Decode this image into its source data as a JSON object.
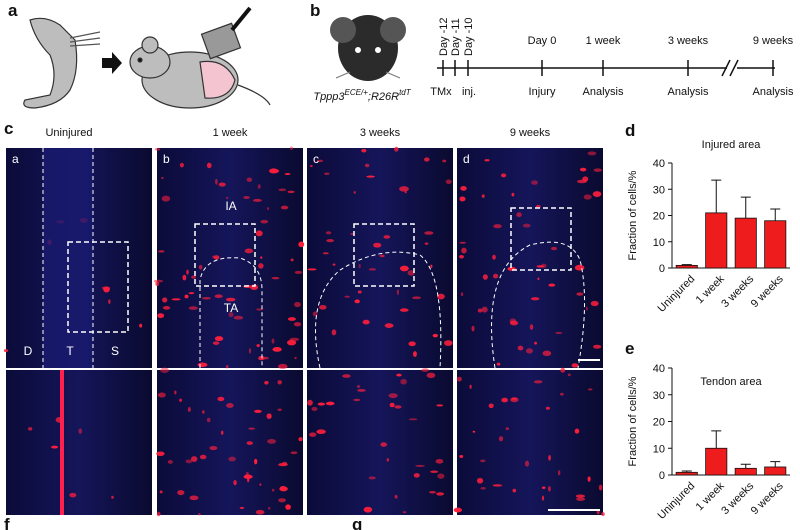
{
  "panel_labels": [
    "a",
    "b",
    "c",
    "d",
    "e",
    "f",
    "g"
  ],
  "genotype": {
    "gene": "Tppp3",
    "allele1": "ECE/+",
    "sep": ";",
    "reporter": "R26R",
    "allele2": "tdT"
  },
  "timeline": {
    "top_labels": [
      "Day -12",
      "Day -11",
      "Day -10",
      "Day 0",
      "1 week",
      "3 weeks",
      "9 weeks"
    ],
    "bottom_labels": [
      "TMx",
      "inj.",
      "Injury",
      "Analysis",
      "Analysis",
      "Analysis"
    ]
  },
  "microscopy": {
    "columns": [
      "Uninjured",
      "1 week",
      "3 weeks",
      "9 weeks"
    ],
    "subpanels": [
      "a",
      "b",
      "c",
      "d"
    ],
    "regions": [
      "D",
      "T",
      "S",
      "IA",
      "TA"
    ]
  },
  "chart_data": [
    {
      "type": "bar",
      "title": "Injured area",
      "ylabel": "Fraction of cells/%",
      "categories": [
        "Uninjured",
        "1 week",
        "3 weeks",
        "9 weeks"
      ],
      "values": [
        1,
        21,
        19,
        18
      ],
      "errors": [
        0.3,
        12.5,
        8,
        4.5
      ],
      "color": "#ee1c1c",
      "ylim": [
        0,
        40
      ],
      "yticks": [
        0,
        10,
        20,
        30,
        40
      ]
    },
    {
      "type": "bar",
      "title": "Tendon area",
      "ylabel": "Fraction of cells/%",
      "categories": [
        "Uninjured",
        "1 week",
        "3 weeks",
        "9 weeks"
      ],
      "values": [
        1,
        10,
        2.5,
        3
      ],
      "errors": [
        0.5,
        6.5,
        1.5,
        2
      ],
      "color": "#ee1c1c",
      "ylim": [
        0,
        40
      ],
      "yticks": [
        0,
        10,
        20,
        30,
        40
      ]
    }
  ]
}
